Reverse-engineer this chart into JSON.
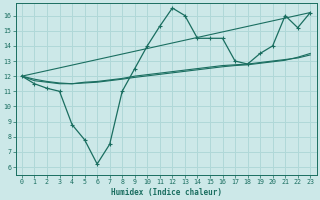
{
  "xlabel": "Humidex (Indice chaleur)",
  "xlim": [
    -0.5,
    23.5
  ],
  "ylim": [
    5.5,
    16.8
  ],
  "xticks": [
    0,
    1,
    2,
    3,
    4,
    5,
    6,
    7,
    8,
    9,
    10,
    11,
    12,
    13,
    14,
    15,
    16,
    17,
    18,
    19,
    20,
    21,
    22,
    23
  ],
  "yticks": [
    6,
    7,
    8,
    9,
    10,
    11,
    12,
    13,
    14,
    15,
    16
  ],
  "bg_color": "#cce8e8",
  "line_color": "#1a6e60",
  "grid_color": "#b0d8d8",
  "line1_x": [
    0,
    1,
    2,
    3,
    4,
    5,
    6,
    7,
    8,
    9,
    10,
    11,
    12,
    13,
    14,
    15,
    16,
    17,
    18,
    19,
    20,
    21,
    22,
    23
  ],
  "line1_y": [
    12.0,
    11.5,
    11.2,
    11.0,
    8.8,
    7.8,
    6.2,
    7.5,
    11.0,
    12.5,
    14.0,
    15.3,
    16.5,
    16.0,
    14.5,
    14.5,
    14.5,
    13.0,
    12.8,
    13.5,
    14.0,
    16.0,
    15.2,
    16.2
  ],
  "line2_x": [
    0,
    23
  ],
  "line2_y": [
    12.0,
    16.2
  ],
  "line3_x": [
    0,
    1,
    2,
    3,
    4,
    5,
    6,
    7,
    8,
    9,
    10,
    11,
    12,
    13,
    14,
    15,
    16,
    17,
    18,
    19,
    20,
    21,
    22,
    23
  ],
  "line3_y": [
    12.0,
    11.7,
    11.6,
    11.5,
    11.5,
    11.6,
    11.65,
    11.75,
    11.85,
    12.0,
    12.1,
    12.2,
    12.3,
    12.4,
    12.5,
    12.6,
    12.7,
    12.75,
    12.8,
    12.9,
    13.0,
    13.1,
    13.2,
    13.4
  ],
  "line4_x": [
    0,
    1,
    2,
    3,
    4,
    5,
    6,
    7,
    8,
    9,
    10,
    11,
    12,
    13,
    14,
    15,
    16,
    17,
    18,
    19,
    20,
    21,
    22,
    23
  ],
  "line4_y": [
    12.0,
    11.8,
    11.65,
    11.55,
    11.5,
    11.55,
    11.6,
    11.7,
    11.8,
    11.92,
    12.02,
    12.12,
    12.22,
    12.32,
    12.42,
    12.52,
    12.62,
    12.7,
    12.75,
    12.85,
    12.95,
    13.05,
    13.25,
    13.5
  ]
}
